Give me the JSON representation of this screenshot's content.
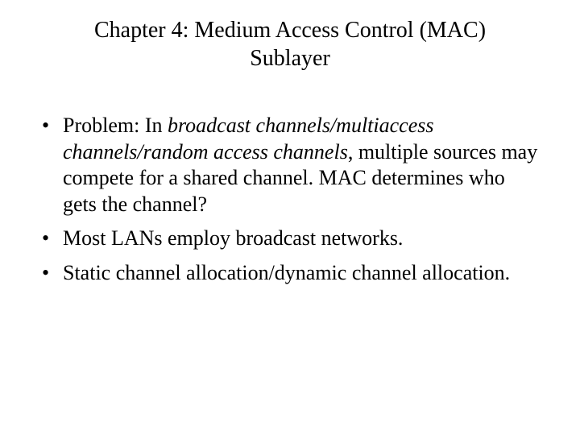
{
  "slide": {
    "background_color": "#ffffff",
    "text_color": "#000000",
    "font_family": "Times New Roman",
    "title": {
      "line1": "Chapter 4: Medium Access Control (MAC)",
      "line2": "Sublayer",
      "fontsize": 28,
      "align": "center"
    },
    "bullets": {
      "fontsize": 26,
      "marker": "•",
      "items": [
        {
          "before_italic": "Problem: In ",
          "italic": "broadcast channels/multiaccess channels/random access channels",
          "after_italic": ", multiple sources may compete for a shared channel. MAC  determines who gets the channel?"
        },
        {
          "before_italic": "Most LANs employ broadcast networks.",
          "italic": "",
          "after_italic": ""
        },
        {
          "before_italic": "Static channel allocation/dynamic channel allocation.",
          "italic": "",
          "after_italic": ""
        }
      ]
    }
  }
}
